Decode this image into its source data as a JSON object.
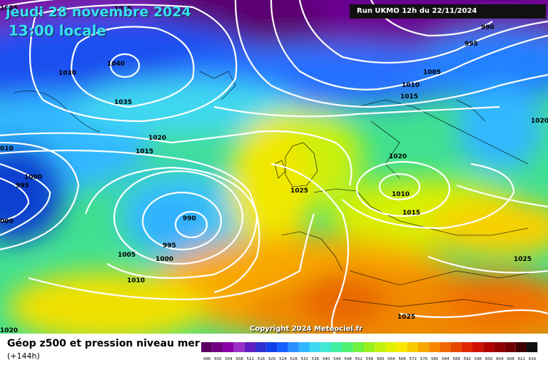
{
  "header": {
    "date_line": "jeudi 28 novembre 2024",
    "time_line": "13:00 locale",
    "run_info": "Run UKMO 12h du 22/11/2024"
  },
  "copyright": "Copyright 2024 Meteociel.fr",
  "legend": {
    "title": "Géop z500 et pression niveau mer",
    "lead_time": "(+144h)",
    "scale_values": [
      "496",
      "500",
      "504",
      "508",
      "512",
      "516",
      "520",
      "524",
      "528",
      "532",
      "536",
      "540",
      "544",
      "548",
      "552",
      "556",
      "560",
      "564",
      "568",
      "572",
      "576",
      "580",
      "584",
      "588",
      "592",
      "596",
      "600",
      "604",
      "608",
      "612",
      "616"
    ],
    "scale_colors": [
      "#5a0060",
      "#700080",
      "#8a00a8",
      "#9a30c8",
      "#6020c0",
      "#3030d0",
      "#1040e8",
      "#1860ff",
      "#2890ff",
      "#30b8ff",
      "#40d8f0",
      "#40e8d0",
      "#40f0a0",
      "#50f070",
      "#70f040",
      "#98f020",
      "#c0f010",
      "#e0f000",
      "#f8e800",
      "#f8c800",
      "#f8a800",
      "#f88800",
      "#f06800",
      "#e84800",
      "#e02800",
      "#d01000",
      "#b00000",
      "#900000",
      "#700000",
      "#400000",
      "#101010"
    ]
  },
  "isobar_labels": [
    {
      "text": "1025"
    },
    {
      "text": "1025"
    },
    {
      "text": "1040"
    },
    {
      "text": "1030"
    },
    {
      "text": "1035"
    },
    {
      "text": "990"
    },
    {
      "text": "995"
    },
    {
      "text": "1005"
    },
    {
      "text": "1010"
    },
    {
      "text": "1015"
    },
    {
      "text": "1020"
    },
    {
      "text": "1020"
    },
    {
      "text": "1015"
    },
    {
      "text": "010"
    },
    {
      "text": "1000"
    },
    {
      "text": "995"
    },
    {
      "text": "000"
    },
    {
      "text": "1025"
    },
    {
      "text": "1020"
    },
    {
      "text": "1010"
    },
    {
      "text": "1015"
    },
    {
      "text": "990"
    },
    {
      "text": "995"
    },
    {
      "text": "1000"
    },
    {
      "text": "1005"
    },
    {
      "text": "1010"
    },
    {
      "text": "1025"
    },
    {
      "text": "1025"
    },
    {
      "text": "1020"
    }
  ]
}
